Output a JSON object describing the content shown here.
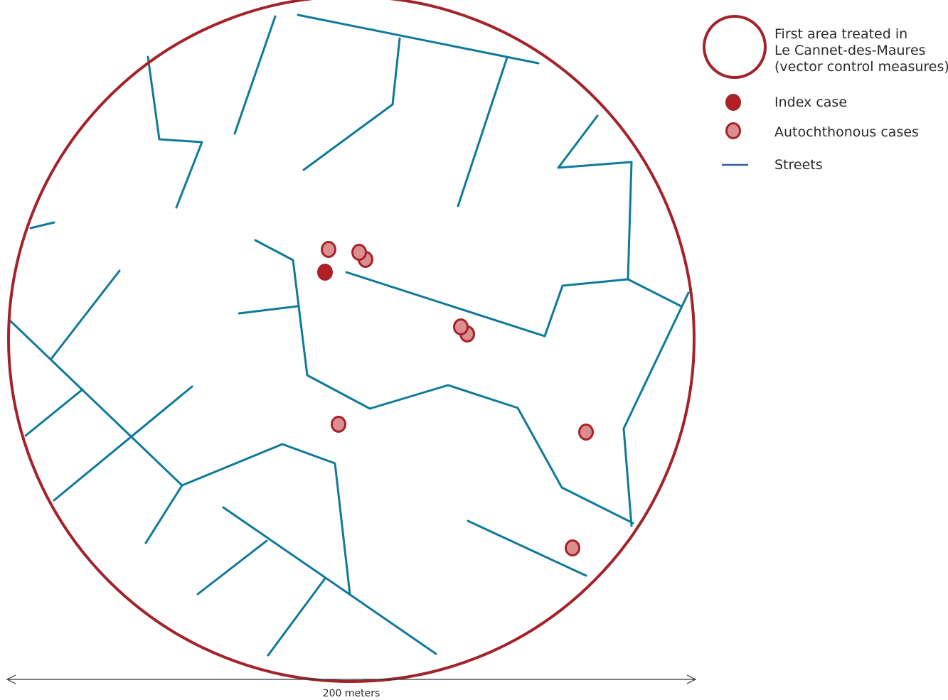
{
  "colors": {
    "treated_area": "#a3232a",
    "index_case_fill": "#b71f26",
    "autochthonous_fill": "#dc8e8e",
    "case_outline": "#a3232a",
    "streets": "#0f7a99",
    "legend_streets": "#2f5fa8",
    "scale_line": "#333333"
  },
  "legend": {
    "treated_area": {
      "icon": "circle-outline-icon",
      "lines": [
        "First area treated in",
        "Le Cannet-des-Maures",
        "(vector control measures)"
      ]
    },
    "index_case": {
      "icon": "filled-dot-icon",
      "label": "Index case"
    },
    "autochthonous_cases": {
      "icon": "pink-dot-icon",
      "label": "Autochthonous cases"
    },
    "streets": {
      "icon": "line-icon",
      "label": "Streets"
    }
  },
  "scale": {
    "label": "200 meters",
    "icon": "double-arrow-icon"
  }
}
